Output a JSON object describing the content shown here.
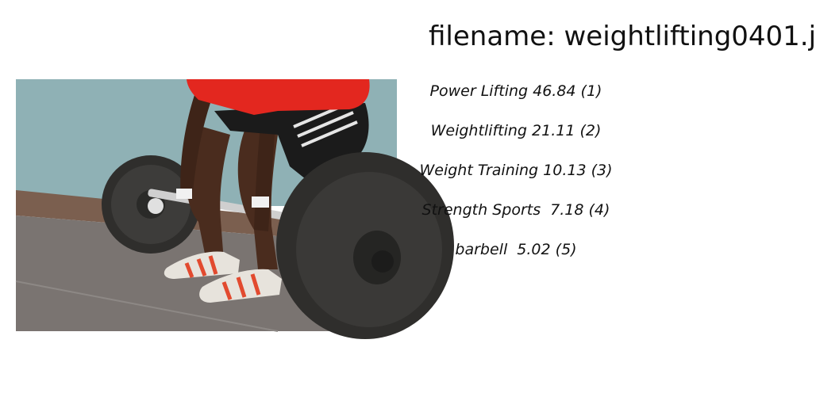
{
  "filename_label": "filename: weightlifting0401.j",
  "photo": {
    "subject": "athlete lifting barbell",
    "colors": {
      "wall": "#8fb1b5",
      "floor": "#7a7471",
      "shirt": "#e3271f",
      "shorts": "#1b1b1b",
      "skin": "#4a2c1e",
      "plate": "#3b3a38",
      "bar": "#cfcfcf",
      "shoe_stripe": "#e24a2f"
    }
  },
  "predictions": [
    {
      "label": "Power Lifting 46.84 (1)"
    },
    {
      "label": "Weightlifting 21.11 (2)"
    },
    {
      "label": "Weight Training 10.13 (3)"
    },
    {
      "label": "Strength Sports  7.18 (4)"
    },
    {
      "label": "barbell  5.02 (5)"
    }
  ]
}
